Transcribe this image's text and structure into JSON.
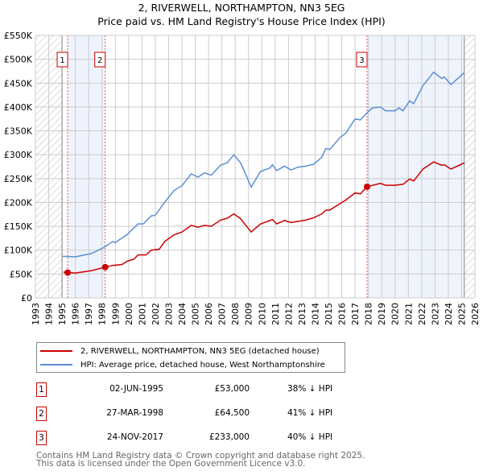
{
  "chart_data": {
    "type": "line",
    "title": "2, RIVERWELL, NORTHAMPTON, NN3 5EG",
    "subtitle": "Price paid vs. HM Land Registry's House Price Index (HPI)",
    "xlim": [
      1993,
      2026
    ],
    "ylim": [
      0,
      550000
    ],
    "yticks": [
      0,
      50000,
      100000,
      150000,
      200000,
      250000,
      300000,
      350000,
      400000,
      450000,
      500000,
      550000
    ],
    "ytick_labels": [
      "£0",
      "£50K",
      "£100K",
      "£150K",
      "£200K",
      "£250K",
      "£300K",
      "£350K",
      "£400K",
      "£450K",
      "£500K",
      "£550K"
    ],
    "xticks": [
      1993,
      1994,
      1995,
      1996,
      1997,
      1998,
      1999,
      2000,
      2001,
      2002,
      2003,
      2004,
      2005,
      2006,
      2007,
      2008,
      2009,
      2010,
      2011,
      2012,
      2013,
      2014,
      2015,
      2016,
      2017,
      2018,
      2019,
      2020,
      2021,
      2022,
      2023,
      2024,
      2025,
      2026
    ],
    "grid": true,
    "series": [
      {
        "name": "2, RIVERWELL, NORTHAMPTON, NN3 5EG (detached house)",
        "color": "#cc0000",
        "points": [
          [
            1995.1,
            54
          ],
          [
            1995.42,
            53
          ],
          [
            1996,
            52
          ],
          [
            1997.2,
            57
          ],
          [
            1998.24,
            64.5
          ],
          [
            1998.8,
            68
          ],
          [
            1999.5,
            70
          ],
          [
            1999.9,
            77
          ],
          [
            2000.4,
            81
          ],
          [
            2000.7,
            90
          ],
          [
            2001.3,
            90
          ],
          [
            2001.7,
            100
          ],
          [
            2002.3,
            102
          ],
          [
            2002.7,
            118
          ],
          [
            2003.4,
            132
          ],
          [
            2004,
            138
          ],
          [
            2004.7,
            152
          ],
          [
            2005.2,
            148
          ],
          [
            2005.7,
            152
          ],
          [
            2006.2,
            150
          ],
          [
            2006.9,
            163
          ],
          [
            2007.4,
            167
          ],
          [
            2007.9,
            176
          ],
          [
            2008.4,
            166
          ],
          [
            2008.8,
            152
          ],
          [
            2009.2,
            138
          ],
          [
            2009.9,
            155
          ],
          [
            2010.8,
            164
          ],
          [
            2011.1,
            155
          ],
          [
            2011.7,
            162
          ],
          [
            2012.2,
            158
          ],
          [
            2013.3,
            163
          ],
          [
            2013.9,
            168
          ],
          [
            2014.5,
            176
          ],
          [
            2014.8,
            184
          ],
          [
            2015.1,
            184
          ],
          [
            2015.9,
            198
          ],
          [
            2016.3,
            205
          ],
          [
            2017,
            220
          ],
          [
            2017.4,
            218
          ],
          [
            2017.9,
            233
          ],
          [
            2018.9,
            240
          ],
          [
            2019.3,
            236
          ],
          [
            2020,
            236
          ],
          [
            2020.6,
            238
          ],
          [
            2021.1,
            249
          ],
          [
            2021.4,
            245
          ],
          [
            2022.1,
            270
          ],
          [
            2022.9,
            285
          ],
          [
            2023.5,
            278
          ],
          [
            2023.7,
            279
          ],
          [
            2024.2,
            270
          ],
          [
            2025.2,
            283
          ]
        ]
      },
      {
        "name": "HPI: Average price, detached house, West Northamptonshire",
        "color": "#5b8fd4",
        "points": [
          [
            1995,
            87
          ],
          [
            1996,
            86
          ],
          [
            1997.2,
            93
          ],
          [
            1998.1,
            105
          ],
          [
            1998.8,
            118
          ],
          [
            1999,
            116
          ],
          [
            1999.9,
            133
          ],
          [
            2000.7,
            155
          ],
          [
            2001.1,
            155
          ],
          [
            2001.7,
            172
          ],
          [
            2002,
            173
          ],
          [
            2002.7,
            200
          ],
          [
            2003.4,
            225
          ],
          [
            2004,
            235
          ],
          [
            2004.7,
            260
          ],
          [
            2005.2,
            253
          ],
          [
            2005.7,
            262
          ],
          [
            2006.2,
            257
          ],
          [
            2006.9,
            278
          ],
          [
            2007.4,
            283
          ],
          [
            2007.9,
            300
          ],
          [
            2008.4,
            283
          ],
          [
            2008.8,
            258
          ],
          [
            2009.2,
            232
          ],
          [
            2009.9,
            265
          ],
          [
            2010.6,
            272
          ],
          [
            2010.8,
            279
          ],
          [
            2011.1,
            267
          ],
          [
            2011.7,
            276
          ],
          [
            2012.2,
            268
          ],
          [
            2012.7,
            274
          ],
          [
            2013.3,
            276
          ],
          [
            2013.9,
            280
          ],
          [
            2014.5,
            295
          ],
          [
            2014.8,
            313
          ],
          [
            2015.1,
            311
          ],
          [
            2015.9,
            337
          ],
          [
            2016.3,
            345
          ],
          [
            2017,
            375
          ],
          [
            2017.4,
            373
          ],
          [
            2017.9,
            388
          ],
          [
            2018.3,
            398
          ],
          [
            2018.9,
            400
          ],
          [
            2019.3,
            392
          ],
          [
            2020,
            392
          ],
          [
            2020.3,
            398
          ],
          [
            2020.6,
            392
          ],
          [
            2021.1,
            413
          ],
          [
            2021.4,
            407
          ],
          [
            2022.1,
            445
          ],
          [
            2022.9,
            473
          ],
          [
            2023.5,
            460
          ],
          [
            2023.7,
            463
          ],
          [
            2024.2,
            447
          ],
          [
            2024.8,
            462
          ],
          [
            2025.2,
            472
          ]
        ]
      }
    ],
    "value_unit": "thousands GBP",
    "sales": [
      {
        "label": "1",
        "year": 1995.42,
        "value": 53
      },
      {
        "label": "2",
        "year": 1998.24,
        "value": 64.5
      },
      {
        "label": "3",
        "year": 2017.9,
        "value": 233
      }
    ],
    "data_end": 2025.2
  },
  "legend": {
    "red": "2, RIVERWELL, NORTHAMPTON, NN3 5EG (detached house)",
    "blue": "HPI: Average price, detached house, West Northamptonshire"
  },
  "transactions": [
    {
      "num": "1",
      "date": "02-JUN-1995",
      "price": "£53,000",
      "hpi": "38% ↓ HPI"
    },
    {
      "num": "2",
      "date": "27-MAR-1998",
      "price": "£64,500",
      "hpi": "41% ↓ HPI"
    },
    {
      "num": "3",
      "date": "24-NOV-2017",
      "price": "£233,000",
      "hpi": "40% ↓ HPI"
    }
  ],
  "footer": {
    "line1": "Contains HM Land Registry data © Crown copyright and database right 2025.",
    "line2": "This data is licensed under the Open Government Licence v3.0."
  }
}
